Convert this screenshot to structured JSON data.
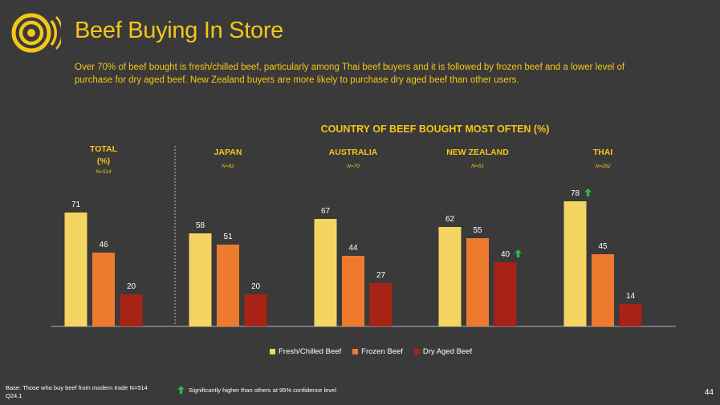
{
  "header": {
    "title": "Beef Buying In Store",
    "subtitle": "Over 70% of beef bought is fresh/chilled beef, particularly among Thai beef buyers and it is followed by frozen beef and a lower level of purchase for dry aged beef. New Zealand buyers are more likely to purchase dry aged beef than other users."
  },
  "chart_data": {
    "type": "bar",
    "title": "COUNTRY OF BEEF BOUGHT MOST OFTEN (%)",
    "groups": [
      {
        "name": "TOTAL (%)",
        "name_lines": [
          "TOTAL",
          "(%)"
        ],
        "base": "N=514"
      },
      {
        "name": "JAPAN",
        "name_lines": [
          "JAPAN"
        ],
        "base": "N=82"
      },
      {
        "name": "AUSTRALIA",
        "name_lines": [
          "AUSTRALIA"
        ],
        "base": "N=70"
      },
      {
        "name": "NEW ZEALAND",
        "name_lines": [
          "NEW ZEALAND"
        ],
        "base": "N=51"
      },
      {
        "name": "THAI",
        "name_lines": [
          "THAI"
        ],
        "base": "N=292"
      }
    ],
    "series": [
      {
        "name": "Fresh/Chilled Beef",
        "color": "#f5d561",
        "values": [
          71,
          58,
          67,
          62,
          78
        ]
      },
      {
        "name": "Frozen Beef",
        "color": "#ee7a2f",
        "values": [
          46,
          51,
          44,
          55,
          45
        ]
      },
      {
        "name": "Dry Aged Beef",
        "color": "#a82315",
        "values": [
          20,
          20,
          27,
          40,
          14
        ]
      }
    ],
    "significant": [
      {
        "group": 4,
        "series": 0
      },
      {
        "group": 3,
        "series": 2
      }
    ],
    "ylim": [
      0,
      100
    ],
    "grid": false,
    "legend_position": "bottom"
  },
  "footer": {
    "base_line1": "Base: Those who buy beef from modern trade N=514",
    "base_line2": "Q24.1",
    "significance_note": "Significantly higher than others at 95% confidence level",
    "page_number": "44"
  },
  "colors": {
    "background": "#3a3a3a",
    "accent": "#f5c518",
    "arrow": "#2eb84b"
  }
}
